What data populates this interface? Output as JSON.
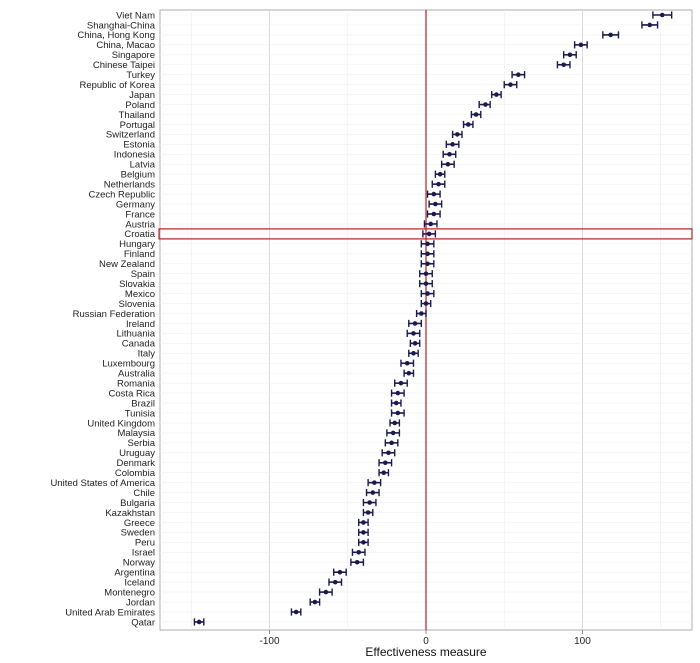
{
  "chart_data": {
    "type": "forest",
    "xlabel": "Effectiveness measure",
    "ylabel": "",
    "xlim": [
      -170,
      170
    ],
    "xticks": [
      -100,
      0,
      100
    ],
    "grid": true,
    "reference_line": {
      "x": 0,
      "color": "#b22222"
    },
    "highlight_category": "Croatia",
    "highlight_color": "#b22222",
    "point_color": "#1a1a4e",
    "categories": [
      "Viet Nam",
      "Shanghai-China",
      "China, Hong Kong",
      "China, Macao",
      "Singapore",
      "Chinese Taipei",
      "Turkey",
      "Republic of Korea",
      "Japan",
      "Poland",
      "Thailand",
      "Portugal",
      "Switzerland",
      "Estonia",
      "Indonesia",
      "Latvia",
      "Belgium",
      "Netherlands",
      "Czech Republic",
      "Germany",
      "France",
      "Austria",
      "Croatia",
      "Hungary",
      "Finland",
      "New Zealand",
      "Spain",
      "Slovakia",
      "Mexico",
      "Slovenia",
      "Russian Federation",
      "Ireland",
      "Lithuania",
      "Canada",
      "Italy",
      "Luxembourg",
      "Australia",
      "Romania",
      "Costa Rica",
      "Brazil",
      "Tunisia",
      "United Kingdom",
      "Malaysia",
      "Serbia",
      "Uruguay",
      "Denmark",
      "Colombia",
      "United States of America",
      "Chile",
      "Bulgaria",
      "Kazakhstan",
      "Greece",
      "Sweden",
      "Peru",
      "Israel",
      "Norway",
      "Argentina",
      "Iceland",
      "Montenegro",
      "Jordan",
      "United Arab Emirates",
      "Qatar"
    ],
    "values": [
      151,
      143,
      118,
      99,
      92,
      88,
      59,
      54,
      45,
      38,
      32,
      27,
      20,
      17,
      15,
      14,
      9,
      8,
      5,
      6,
      5,
      3,
      2,
      1,
      1,
      1,
      0,
      0,
      1,
      0,
      -3,
      -7,
      -8,
      -7,
      -8,
      -12,
      -11,
      -16,
      -18,
      -19,
      -18,
      -20,
      -21,
      -22,
      -24,
      -26,
      -27,
      -33,
      -34,
      -36,
      -37,
      -40,
      -40,
      -40,
      -43,
      -44,
      -55,
      -58,
      -64,
      -71,
      -83,
      -145
    ],
    "lower": [
      145,
      138,
      113,
      95,
      88,
      84,
      55,
      50,
      42,
      34,
      29,
      24,
      17,
      13,
      11,
      10,
      6,
      4,
      1,
      2,
      1,
      -1,
      -2,
      -3,
      -3,
      -3,
      -4,
      -4,
      -3,
      -3,
      -6,
      -11,
      -12,
      -10,
      -11,
      -16,
      -14,
      -20,
      -22,
      -22,
      -22,
      -23,
      -25,
      -26,
      -28,
      -30,
      -30,
      -37,
      -38,
      -40,
      -40,
      -43,
      -43,
      -43,
      -47,
      -48,
      -59,
      -62,
      -68,
      -74,
      -86,
      -148
    ],
    "upper": [
      157,
      148,
      123,
      103,
      96,
      92,
      63,
      58,
      48,
      41,
      35,
      30,
      23,
      21,
      19,
      18,
      12,
      12,
      9,
      10,
      9,
      7,
      6,
      5,
      5,
      5,
      4,
      4,
      5,
      3,
      0,
      -3,
      -4,
      -4,
      -5,
      -8,
      -8,
      -12,
      -14,
      -16,
      -14,
      -17,
      -17,
      -18,
      -20,
      -22,
      -24,
      -29,
      -30,
      -32,
      -34,
      -37,
      -37,
      -37,
      -39,
      -40,
      -51,
      -54,
      -60,
      -68,
      -80,
      -142
    ]
  }
}
